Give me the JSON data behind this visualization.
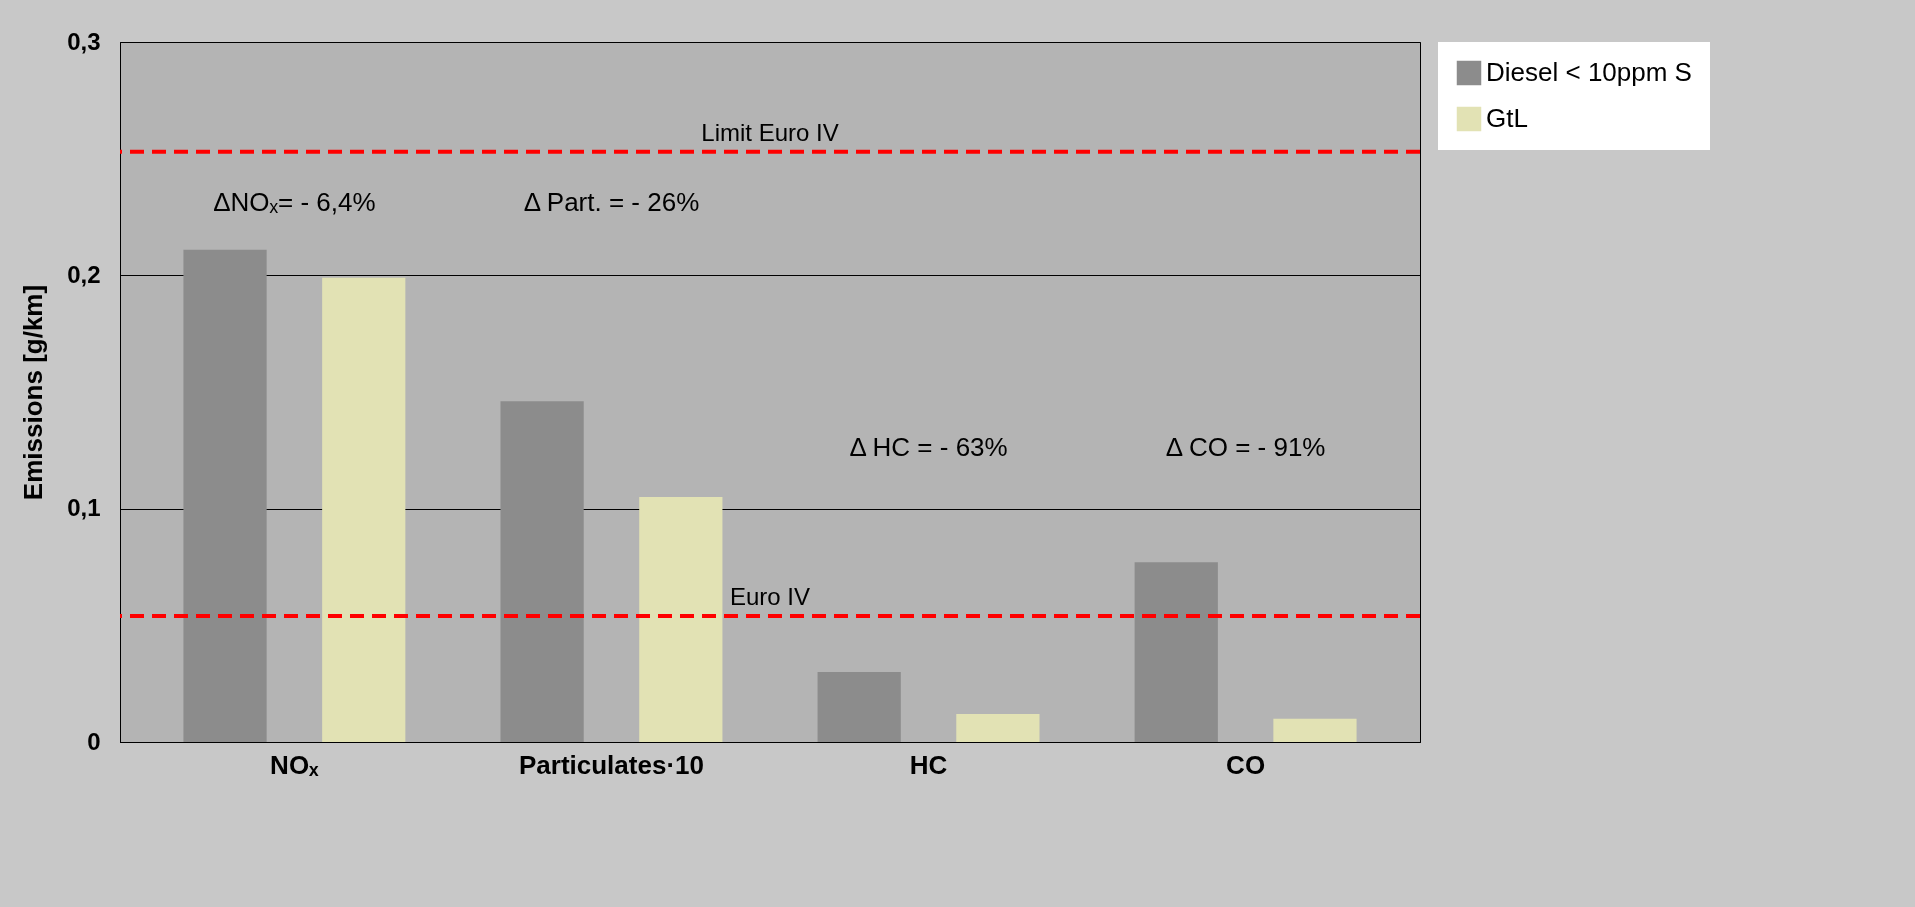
{
  "chart_data": {
    "type": "bar",
    "ylabel": "Emissions  [g/km]",
    "categories": [
      "NOₓ",
      "Particulates·10",
      "HC",
      "CO"
    ],
    "series": [
      {
        "name": "Diesel < 10ppm S",
        "color": "#8c8c8c",
        "values": [
          0.211,
          0.146,
          0.03,
          0.077
        ]
      },
      {
        "name": "GtL",
        "color": "#e2e2b4",
        "values": [
          0.199,
          0.105,
          0.012,
          0.01
        ]
      }
    ],
    "ylim": [
      0,
      0.3
    ],
    "yticks": [
      {
        "value": 0,
        "label": "0"
      },
      {
        "value": 0.1,
        "label": "0,1"
      },
      {
        "value": 0.2,
        "label": "0,2"
      },
      {
        "value": 0.3,
        "label": "0,3"
      }
    ],
    "grid": "y",
    "legend": "right",
    "ref_lines": [
      {
        "axis": "y",
        "value": 0.253,
        "label": "Limit Euro IV",
        "color": "#ff0000",
        "line_style": "dashed"
      },
      {
        "axis": "y",
        "value": 0.054,
        "label": "Euro IV",
        "color": "#ff0000",
        "line_style": "dashed"
      }
    ],
    "annotations": [
      "ΔNOₓ= - 6,4%",
      "Δ Part. = - 26%",
      "Δ HC = - 63%",
      "Δ CO = - 91%"
    ]
  }
}
